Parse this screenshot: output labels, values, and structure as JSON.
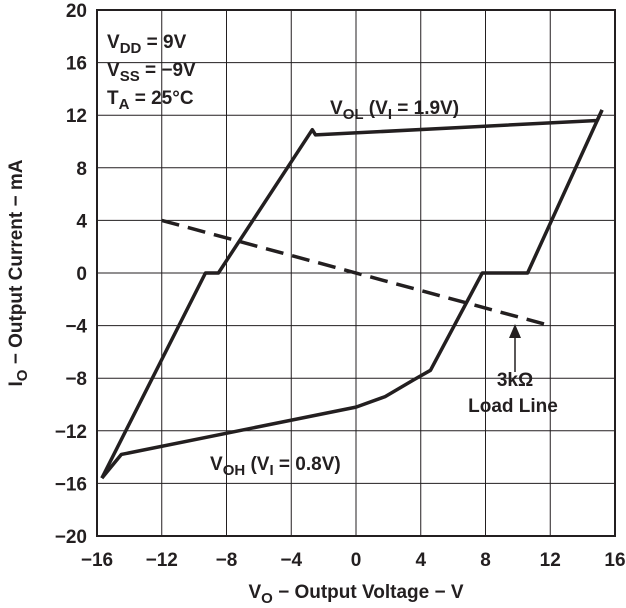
{
  "chart_data": {
    "type": "line",
    "x_label": [
      {
        "text": "V"
      },
      {
        "text": "O",
        "sub": true
      },
      {
        "text": " − Output Voltage − V"
      }
    ],
    "y_label": [
      {
        "text": "I"
      },
      {
        "text": "O",
        "sub": true
      },
      {
        "text": " − Output Current − mA"
      }
    ],
    "xlim": [
      -16,
      16
    ],
    "ylim": [
      -20,
      20
    ],
    "xticks": [
      {
        "value": -16,
        "label": "−16"
      },
      {
        "value": -12,
        "label": "−12"
      },
      {
        "value": -8,
        "label": "−8"
      },
      {
        "value": -4,
        "label": "−4"
      },
      0,
      4,
      8,
      12,
      16
    ],
    "yticks": [
      {
        "value": -20,
        "label": "−20"
      },
      {
        "value": -16,
        "label": "−16"
      },
      {
        "value": -12,
        "label": "−12"
      },
      {
        "value": -8,
        "label": "−8"
      },
      {
        "value": -4,
        "label": "−4"
      },
      0,
      4,
      8,
      12,
      16,
      20
    ],
    "grid": true,
    "series": [
      {
        "color": "#231f20",
        "dashed": false,
        "x": [
          -15.7,
          -9.3,
          -8.5,
          -2.7,
          -2.5,
          14.9,
          15.2
        ],
        "values": [
          -15.6,
          0,
          0,
          10.9,
          10.5,
          11.6,
          12.4
        ]
      },
      {
        "color": "#231f20",
        "dashed": false,
        "x": [
          15.2,
          10.6,
          7.8,
          4.6,
          3.6,
          1.8,
          0,
          -14.5,
          -15.7
        ],
        "values": [
          12.4,
          0,
          0,
          -7.4,
          -8.1,
          -9.4,
          -10.2,
          -13.8,
          -15.6
        ]
      },
      {
        "color": "#231f20",
        "dashed": true,
        "x": [
          -12,
          12
        ],
        "values": [
          4,
          -4
        ]
      }
    ],
    "annotations": [
      [
        {
          "text": "V"
        },
        {
          "text": "DD",
          "sub": true
        },
        {
          "text": " = 9V"
        }
      ],
      [
        {
          "text": "V"
        },
        {
          "text": "SS",
          "sub": true
        },
        {
          "text": " = −9V"
        }
      ],
      [
        {
          "text": "T"
        },
        {
          "text": "A",
          "sub": true
        },
        {
          "text": " = 25°C"
        }
      ],
      [
        {
          "text": "V"
        },
        {
          "text": "OL",
          "sub": true
        },
        {
          "text": " (V"
        },
        {
          "text": "I",
          "sub": true
        },
        {
          "text": " = 1.9V)"
        }
      ],
      [
        {
          "text": "V"
        },
        {
          "text": "OH",
          "sub": true
        },
        {
          "text": " (V"
        },
        {
          "text": "I",
          "sub": true
        },
        {
          "text": " = 0.8V)"
        }
      ],
      [
        {
          "text": "3kΩ"
        }
      ],
      [
        {
          "text": "Load Line"
        }
      ]
    ]
  }
}
